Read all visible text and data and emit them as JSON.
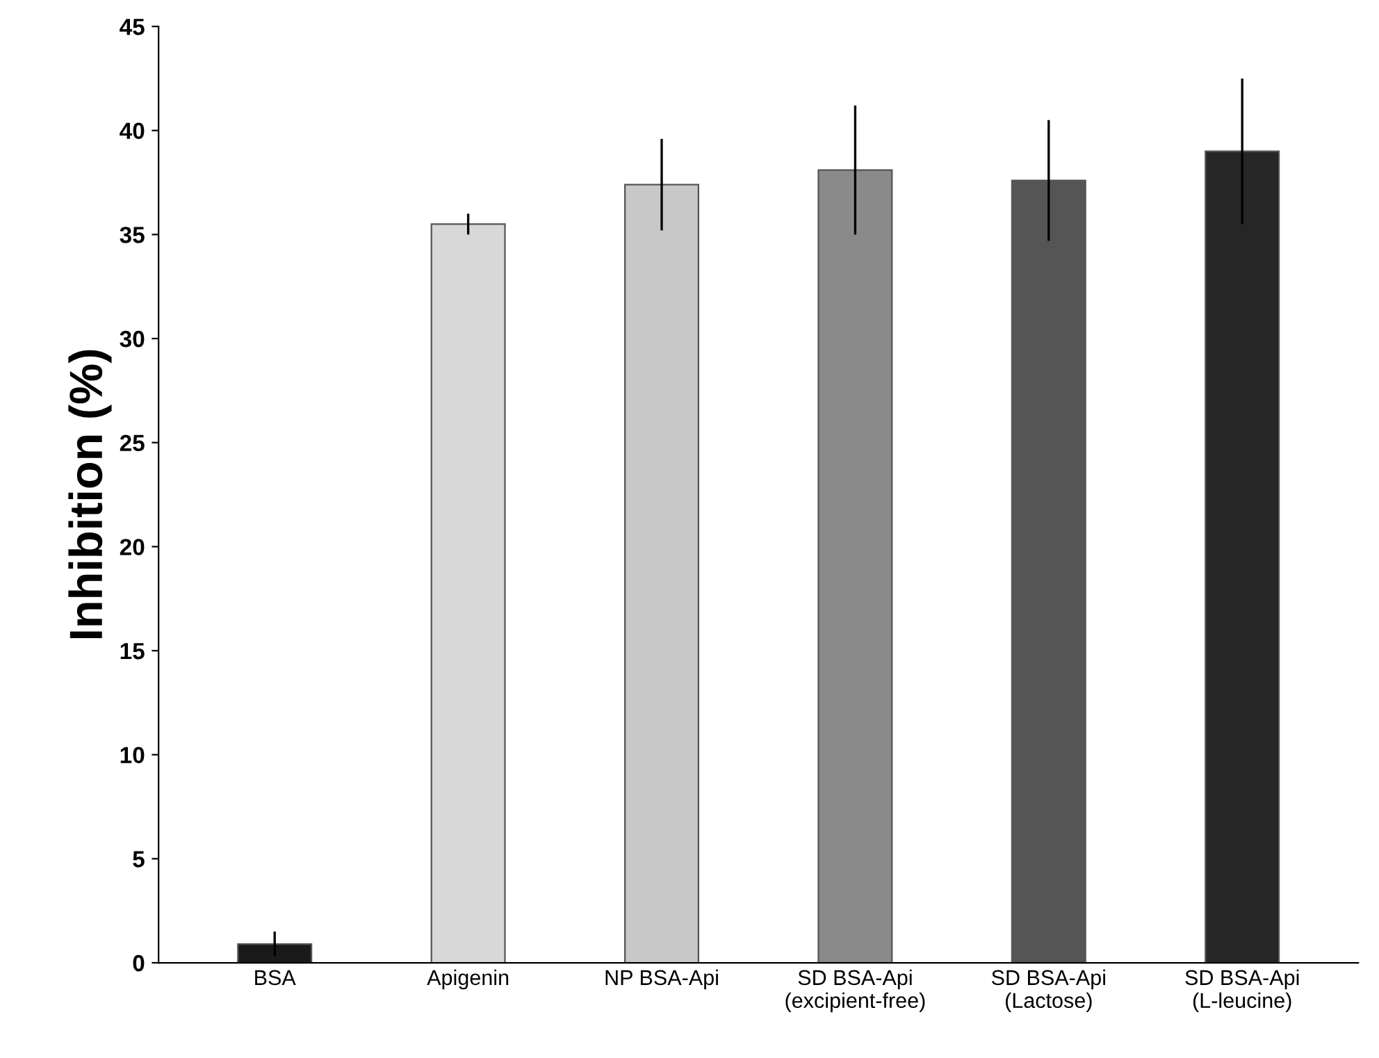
{
  "chart_data": {
    "type": "bar",
    "ylabel": "Inhibition (%)",
    "categories": [
      "BSA",
      "Apigenin",
      "NP BSA-Api",
      "SD BSA-Api\n(excipient-free)",
      "SD BSA-Api\n(Lactose)",
      "SD BSA-Api\n(L-leucine)"
    ],
    "values": [
      0.9,
      35.5,
      37.4,
      38.1,
      37.6,
      39.0
    ],
    "errors": [
      0.6,
      0.5,
      2.2,
      3.1,
      2.9,
      3.5
    ],
    "colors": [
      "#1a1a1a",
      "#d8d8d8",
      "#c8c8c8",
      "#8a8a8a",
      "#555555",
      "#262626"
    ],
    "ylim": [
      0,
      45
    ],
    "yticks": [
      0,
      5,
      10,
      15,
      20,
      25,
      30,
      35,
      40,
      45
    ],
    "grid": false
  }
}
